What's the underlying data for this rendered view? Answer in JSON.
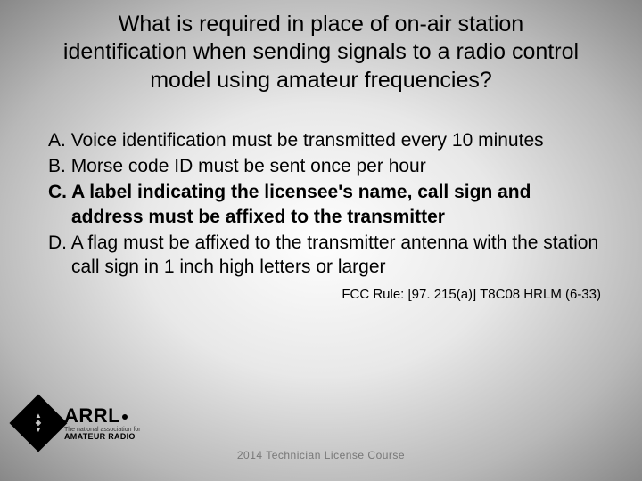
{
  "question": "What is required in place of on-air station identification when sending signals to a radio control model using amateur frequencies?",
  "answers": {
    "a": {
      "letter": "A.",
      "text": "Voice identification must be transmitted every 10 minutes",
      "correct": false
    },
    "b": {
      "letter": "B.",
      "text": "Morse code ID must be sent once per hour",
      "correct": false
    },
    "c": {
      "letter": "C.",
      "text": "A label indicating the licensee's name, call sign and address must be affixed to the transmitter",
      "correct": true
    },
    "d": {
      "letter": "D.",
      "text": "A flag must be affixed to the transmitter antenna with the station call sign in 1 inch high letters or larger",
      "correct": false
    }
  },
  "rule_reference": "FCC Rule: [97. 215(a)] T8C08 HRLM (6-33)",
  "footer": "2014 Technician License Course",
  "logo": {
    "name": "ARRL",
    "sub1": "The national association for",
    "sub2": "AMATEUR RADIO"
  },
  "colors": {
    "text": "#000000",
    "footer_text": "#777777",
    "bg_center": "#fefefe",
    "bg_edge": "#888888"
  },
  "typography": {
    "question_fontsize": 25,
    "answer_fontsize": 21,
    "ruleref_fontsize": 15,
    "footer_fontsize": 12
  }
}
